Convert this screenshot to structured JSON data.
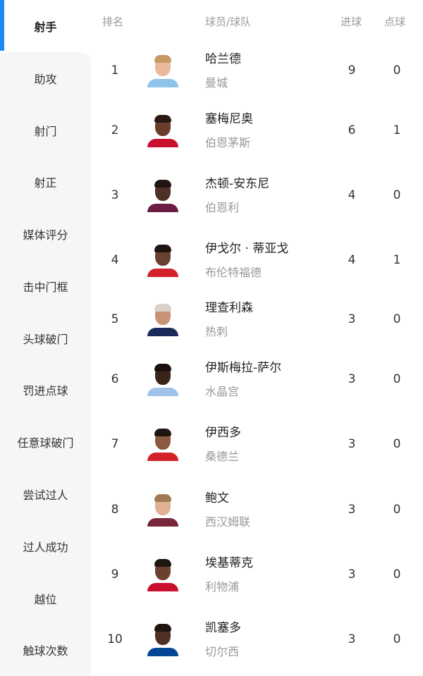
{
  "sidebar": {
    "items": [
      "射手",
      "助攻",
      "射门",
      "射正",
      "媒体评分",
      "击中门框",
      "头球破门",
      "罚进点球",
      "任意球破门",
      "尝试过人",
      "过人成功",
      "越位",
      "触球次数"
    ],
    "active_index": 0,
    "accent": "#1e88f5"
  },
  "table": {
    "headers": {
      "rank": "排名",
      "player": "球员/球队",
      "goals": "进球",
      "penalties": "点球"
    },
    "rows": [
      {
        "rank": "1",
        "name": "哈兰德",
        "team": "曼城",
        "goals": "9",
        "penalties": "0",
        "skin": "#e8b99a",
        "hair": "#c89a63",
        "shirt": "#8ec3ea"
      },
      {
        "rank": "2",
        "name": "塞梅尼奥",
        "team": "伯恩茅斯",
        "goals": "6",
        "penalties": "1",
        "skin": "#6b3d2a",
        "hair": "#2a1a12",
        "shirt": "#c8102e"
      },
      {
        "rank": "3",
        "name": "杰顿-安东尼",
        "team": "伯恩利",
        "goals": "4",
        "penalties": "0",
        "skin": "#4e3024",
        "hair": "#1e1410",
        "shirt": "#6c1d45"
      },
      {
        "rank": "4",
        "name": "伊戈尔 · 蒂亚戈",
        "team": "布伦特福德",
        "goals": "4",
        "penalties": "1",
        "skin": "#6a4030",
        "hair": "#1e1410",
        "shirt": "#d2232a"
      },
      {
        "rank": "5",
        "name": "理查利森",
        "team": "热刺",
        "goals": "3",
        "penalties": "0",
        "skin": "#c89274",
        "hair": "#d8d2c8",
        "shirt": "#1b2a5a"
      },
      {
        "rank": "6",
        "name": "伊斯梅拉-萨尔",
        "team": "水晶宫",
        "goals": "3",
        "penalties": "0",
        "skin": "#3a2418",
        "hair": "#1a100c",
        "shirt": "#9fc4e8"
      },
      {
        "rank": "7",
        "name": "伊西多",
        "team": "桑德兰",
        "goals": "3",
        "penalties": "0",
        "skin": "#8a5a40",
        "hair": "#1e1410",
        "shirt": "#d2232a"
      },
      {
        "rank": "8",
        "name": "鲍文",
        "team": "西汉姆联",
        "goals": "3",
        "penalties": "0",
        "skin": "#e0b094",
        "hair": "#a07a50",
        "shirt": "#7a263a"
      },
      {
        "rank": "9",
        "name": "埃基蒂克",
        "team": "利物浦",
        "goals": "3",
        "penalties": "0",
        "skin": "#6a4030",
        "hair": "#1e1410",
        "shirt": "#c8102e"
      },
      {
        "rank": "10",
        "name": "凯塞多",
        "team": "切尔西",
        "goals": "3",
        "penalties": "0",
        "skin": "#4e3024",
        "hair": "#1e1410",
        "shirt": "#034694"
      }
    ]
  }
}
